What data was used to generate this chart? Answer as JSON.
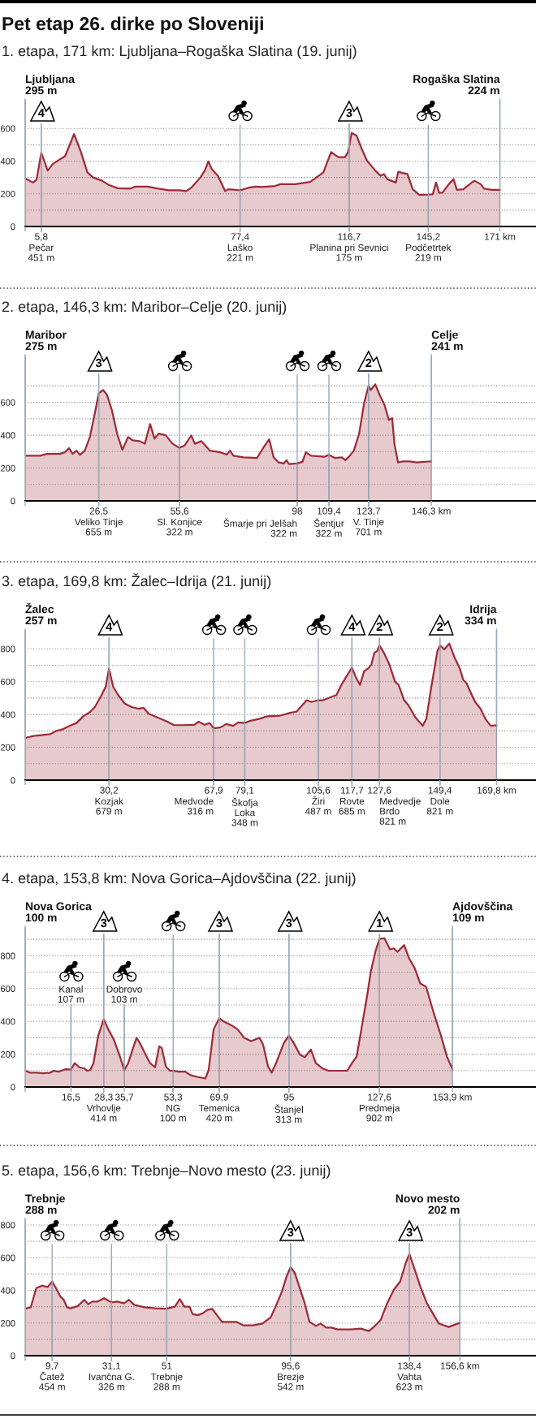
{
  "chart_data": [
    {
      "type": "area",
      "title": "Pet etap 26. dirke po Sloveniji",
      "subtitle": "1. etapa, 171 km: Ljubljana–Rogaška Slatina (19. junij)",
      "x": [
        0,
        2.8,
        4.1,
        5.8,
        6.8,
        8.1,
        10.0,
        11.9,
        14.4,
        17.6,
        20.1,
        22.4,
        24.5,
        27.7,
        30.2,
        33.4,
        37.8,
        39.7,
        44.1,
        47.9,
        51.7,
        55.5,
        58.0,
        59.9,
        63.1,
        64.7,
        66.0,
        67.2,
        69.4,
        70.7,
        72.0,
        73.2,
        75.8,
        77.4,
        80.6,
        83.0,
        85.4,
        90.1,
        91.9,
        97.3,
        102.6,
        104.4,
        107.4,
        110.2,
        112.8,
        115.2,
        116.3,
        116.7,
        117.6,
        119.4,
        121.2,
        123.1,
        126.1,
        128.0,
        129.2,
        130.4,
        133.5,
        134.4,
        136.0,
        137.7,
        139.6,
        142.0,
        145.2,
        146.8,
        148.0,
        149.1,
        150.3,
        152.6,
        154.3,
        155.5,
        157.8,
        160.1,
        161.8,
        164.1,
        165.3,
        168.1,
        171
      ],
      "series": [
        {
          "color": "#9e2a38",
          "values": [
            295,
            269,
            286,
            451,
            404,
            342,
            383,
            404,
            431,
            565,
            455,
            331,
            300,
            280,
            253,
            234,
            232,
            244,
            244,
            232,
            222,
            222,
            217,
            238,
            300,
            342,
            398,
            352,
            311,
            265,
            217,
            228,
            224,
            221,
            238,
            244,
            242,
            248,
            259,
            259,
            273,
            294,
            331,
            455,
            424,
            424,
            455,
            490,
            573,
            555,
            476,
            404,
            342,
            311,
            321,
            290,
            269,
            335,
            327,
            321,
            228,
            193,
            195,
            197,
            269,
            207,
            207,
            259,
            290,
            224,
            228,
            259,
            280,
            259,
            232,
            224,
            224
          ]
        }
      ],
      "xlim": [
        0,
        184
      ],
      "ylim": [
        0,
        770
      ],
      "xticks": [
        {
          "value": 0,
          "label": null
        },
        {
          "value": 5.8,
          "label": "5,8"
        },
        {
          "value": 77.4,
          "label": "77,4"
        },
        {
          "value": 116.7,
          "label": "116,7"
        },
        {
          "value": 145.2,
          "label": "145,2"
        },
        {
          "value": 171,
          "label": "171 km"
        }
      ],
      "yticks": [
        0,
        {
          "value": 100,
          "label": null
        },
        200,
        {
          "value": 300,
          "label": null
        },
        400,
        {
          "value": 500,
          "label": null
        },
        600
      ],
      "grid": true,
      "annotations": [
        {
          "text": "Ljubljana\n295 m",
          "x": 0,
          "y": 295
        },
        {
          "text": "Pečar\n451 m",
          "x": 5.8,
          "y": 451
        },
        {
          "text": "4",
          "x": 5.8,
          "y": 451
        },
        {
          "text": "Laško\n221 m",
          "x": 77.4,
          "y": 221
        },
        {
          "text": "Planina pri Sevnici\n175 m",
          "x": 116.7,
          "y": 490
        },
        {
          "text": "3",
          "x": 116.7,
          "y": 490
        },
        {
          "text": "Podčetrtek\n219 m",
          "x": 145.2,
          "y": 195
        },
        {
          "text": "Rogaška Slatina\n224 m",
          "x": 171,
          "y": 224
        }
      ]
    },
    {
      "type": "area",
      "subtitle": "2. etapa, 146,3 km: Maribor–Celje (20. junij)",
      "x": [
        0,
        5.4,
        7.8,
        12.5,
        14.3,
        15.8,
        17.1,
        18.5,
        19.7,
        21.5,
        23.3,
        25.1,
        26.5,
        28.1,
        29.4,
        31.2,
        33.1,
        35.0,
        37.1,
        38.7,
        41.2,
        43.1,
        45.0,
        46.6,
        48.1,
        50.6,
        53.1,
        55.6,
        57.4,
        59.8,
        61.1,
        63.5,
        66.5,
        70.2,
        72.6,
        73.8,
        75.0,
        78.6,
        83.5,
        85.9,
        87.9,
        89.5,
        91.3,
        93.2,
        94.1,
        95.0,
        98.0,
        99.9,
        101.1,
        103.0,
        107.9,
        109.4,
        111.6,
        114.1,
        115.3,
        116.6,
        118.4,
        120.3,
        122.1,
        123.7,
        124.5,
        126.1,
        127.6,
        129.4,
        131.0,
        132.2,
        133.0,
        134.3,
        136.1,
        138.5,
        140.9,
        146.3
      ],
      "series": [
        {
          "color": "#9e2a38",
          "values": [
            275,
            275,
            286,
            286,
            296,
            321,
            286,
            306,
            280,
            306,
            389,
            534,
            655,
            675,
            648,
            555,
            410,
            311,
            389,
            369,
            364,
            348,
            468,
            379,
            410,
            400,
            348,
            322,
            337,
            398,
            348,
            364,
            306,
            296,
            282,
            306,
            275,
            265,
            261,
            327,
            375,
            265,
            234,
            228,
            248,
            224,
            228,
            238,
            296,
            275,
            269,
            280,
            261,
            265,
            248,
            269,
            306,
            410,
            596,
            701,
            675,
            710,
            648,
            586,
            493,
            503,
            348,
            234,
            240,
            240,
            234,
            241
          ]
        }
      ],
      "xlim": [
        0,
        184
      ],
      "ylim": [
        0,
        880
      ],
      "xticks": [
        {
          "value": 0,
          "label": null
        },
        {
          "value": 26.5,
          "label": "26,5"
        },
        {
          "value": 55.6,
          "label": "55,6"
        },
        98,
        {
          "value": 109.4,
          "label": "109,4"
        },
        {
          "value": 123.7,
          "label": "123,7"
        },
        {
          "value": 146.3,
          "label": "146,3 km"
        }
      ],
      "yticks": [
        0,
        {
          "value": 100,
          "label": null
        },
        200,
        {
          "value": 300,
          "label": null
        },
        400,
        {
          "value": 500,
          "label": null
        },
        600,
        {
          "value": 700,
          "label": null
        }
      ],
      "grid": true,
      "annotations": [
        {
          "text": "Maribor\n275 m",
          "x": 0,
          "y": 275
        },
        {
          "text": "Veliko Tinje\n655 m",
          "x": 26.5,
          "y": 655
        },
        {
          "text": "3",
          "x": 26.5,
          "y": 655
        },
        {
          "text": "Sl. Konjice\n322 m",
          "x": 55.6,
          "y": 322
        },
        {
          "text": "Šmarje pri Jelšah\n322 m",
          "x": 98,
          "y": 228
        },
        {
          "text": "Šentjur\n322 m",
          "x": 109.4,
          "y": 280
        },
        {
          "text": "V. Tinje\n701 m",
          "x": 123.7,
          "y": 701
        },
        {
          "text": "2",
          "x": 123.7,
          "y": 701
        },
        {
          "text": "Celje\n241 m",
          "x": 146.3,
          "y": 241
        }
      ]
    },
    {
      "type": "area",
      "subtitle": "3. etapa, 169,8 km: Žalec–Idrija (21. junij)",
      "x": [
        0,
        3.0,
        9.0,
        11.3,
        13.7,
        16.1,
        18.5,
        20.9,
        23.3,
        25.1,
        27.5,
        29.0,
        30.2,
        31.7,
        33.5,
        35.9,
        38.4,
        40.8,
        42.6,
        44.5,
        47.5,
        51.2,
        53.6,
        56.7,
        60.9,
        62.5,
        64.6,
        66.4,
        67.9,
        70.3,
        72.5,
        74.9,
        76.8,
        79.1,
        81.2,
        84.2,
        87.2,
        91.9,
        95.4,
        97.8,
        101.4,
        103.1,
        105.6,
        107.3,
        110.3,
        112.1,
        113.9,
        115.7,
        117.7,
        119.0,
        120.6,
        122.1,
        123.7,
        124.7,
        125.8,
        126.8,
        127.6,
        129.2,
        131.2,
        133.2,
        134.5,
        136.5,
        138.1,
        140.5,
        143.2,
        144.5,
        146.2,
        148.5,
        149.4,
        151.0,
        152.8,
        154.7,
        156.5,
        157.8,
        159.0,
        160.9,
        162.1,
        164.0,
        165.8,
        167.7,
        169.8
      ],
      "series": [
        {
          "color": "#9e2a38",
          "values": [
            257,
            269,
            280,
            300,
            311,
            331,
            348,
            389,
            414,
            445,
            518,
            569,
            679,
            569,
            518,
            466,
            445,
            435,
            441,
            404,
            383,
            356,
            335,
            335,
            337,
            356,
            337,
            348,
            316,
            321,
            342,
            331,
            352,
            348,
            362,
            373,
            389,
            393,
            410,
            418,
            487,
            476,
            487,
            487,
            507,
            518,
            580,
            631,
            685,
            631,
            580,
            663,
            683,
            704,
            776,
            787,
            821,
            776,
            704,
            600,
            580,
            487,
            455,
            383,
            331,
            373,
            559,
            787,
            821,
            797,
            832,
            745,
            683,
            611,
            590,
            518,
            476,
            435,
            373,
            331,
            334
          ]
        }
      ],
      "xlim": [
        0,
        184
      ],
      "ylim": [
        0,
        910
      ],
      "xticks": [
        {
          "value": 0,
          "label": null
        },
        {
          "value": 30.2,
          "label": "30,2"
        },
        {
          "value": 67.9,
          "label": "67,9"
        },
        {
          "value": 79.1,
          "label": "79,1"
        },
        {
          "value": 105.6,
          "label": "105,6"
        },
        {
          "value": 117.7,
          "label": "117,7"
        },
        {
          "value": 127.6,
          "label": "127,6"
        },
        {
          "value": 149.4,
          "label": "149,4"
        },
        {
          "value": 169.8,
          "label": "169,8 km"
        }
      ],
      "yticks": [
        0,
        {
          "value": 100,
          "label": null
        },
        200,
        {
          "value": 300,
          "label": null
        },
        400,
        {
          "value": 500,
          "label": null
        },
        600,
        {
          "value": 700,
          "label": null
        },
        800
      ],
      "grid": true,
      "annotations": [
        {
          "text": "Žalec\n257 m",
          "x": 0,
          "y": 257
        },
        {
          "text": "Kozjak\n679 m",
          "x": 30.2,
          "y": 679
        },
        {
          "text": "4",
          "x": 30.2,
          "y": 679
        },
        {
          "text": "Medvode\n316 m",
          "x": 67.9,
          "y": 316
        },
        {
          "text": "Škofja\nLoka\n348 m",
          "x": 79.1,
          "y": 348
        },
        {
          "text": "Žiri\n487 m",
          "x": 105.6,
          "y": 487
        },
        {
          "text": "Rovte\n685 m",
          "x": 117.7,
          "y": 685
        },
        {
          "text": "4",
          "x": 117.7,
          "y": 685
        },
        {
          "text": "Medvedje\nBrdo\n821 m",
          "x": 127.6,
          "y": 821
        },
        {
          "text": "2",
          "x": 127.6,
          "y": 821
        },
        {
          "text": "Dole\n821 m",
          "x": 149.4,
          "y": 821
        },
        {
          "text": "2",
          "x": 149.4,
          "y": 821
        },
        {
          "text": "Idrija\n334 m",
          "x": 169.8,
          "y": 334
        }
      ]
    },
    {
      "type": "area",
      "subtitle": "4. etapa, 153,8 km: Nova Gorica–Ajdovščina (22. junij)",
      "x": [
        0,
        1.8,
        4.2,
        6.6,
        9.0,
        10.2,
        12.0,
        14.4,
        16.5,
        17.8,
        19.5,
        21.2,
        22.4,
        23.5,
        24.6,
        26.3,
        28.3,
        29.9,
        31.9,
        33.9,
        35.7,
        37.1,
        38.7,
        40.1,
        41.3,
        43.1,
        45.0,
        46.8,
        48.3,
        49.2,
        50.7,
        52.2,
        53.3,
        55.2,
        57.7,
        59.5,
        61.9,
        64.9,
        66.1,
        67.9,
        69.9,
        71.6,
        74.0,
        76.5,
        78.9,
        81.4,
        84.4,
        85.7,
        87.5,
        88.8,
        90.6,
        93.2,
        95,
        96.7,
        99.0,
        100.7,
        102.9,
        104.7,
        107.0,
        109.2,
        116.0,
        117.7,
        119.4,
        121.1,
        123.2,
        124.5,
        126.2,
        127.6,
        129.4,
        131.4,
        132.8,
        134.1,
        136.5,
        138.2,
        140.3,
        142.3,
        144.4,
        147.1,
        149.8,
        151.9,
        153.9
      ],
      "series": [
        {
          "color": "#9e2a38",
          "values": [
            100,
            87,
            87,
            83,
            87,
            99,
            93,
            108,
            107,
            145,
            120,
            114,
            99,
            104,
            145,
            311,
            414,
            352,
            290,
            197,
            103,
            145,
            228,
            300,
            269,
            207,
            145,
            120,
            248,
            238,
            124,
            99,
            100,
            93,
            93,
            72,
            62,
            52,
            104,
            352,
            420,
            398,
            379,
            352,
            300,
            280,
            300,
            259,
            124,
            87,
            155,
            269,
            313,
            269,
            197,
            182,
            228,
            145,
            114,
            99,
            99,
            145,
            186,
            352,
            559,
            704,
            828,
            902,
            907,
            839,
            845,
            824,
            865,
            787,
            725,
            631,
            611,
            455,
            311,
            186,
            109
          ]
        }
      ],
      "xlim": [
        0,
        184
      ],
      "ylim": [
        0,
        970
      ],
      "xticks": [
        {
          "value": 0,
          "label": null
        },
        {
          "value": 16.5,
          "label": "16,5"
        },
        {
          "value": 28.3,
          "label": "28,3"
        },
        {
          "value": 35.7,
          "label": "35,7"
        },
        {
          "value": 53.3,
          "label": "53,3"
        },
        {
          "value": 69.9,
          "label": "69,9"
        },
        95,
        {
          "value": 127.6,
          "label": "127,6"
        },
        {
          "value": 153.9,
          "label": "153,9 km"
        }
      ],
      "yticks": [
        0,
        {
          "value": 100,
          "label": null
        },
        200,
        {
          "value": 300,
          "label": null
        },
        400,
        {
          "value": 500,
          "label": null
        },
        600,
        {
          "value": 700,
          "label": null
        },
        800,
        {
          "value": 900,
          "label": null
        }
      ],
      "grid": true,
      "annotations": [
        {
          "text": "Nova Gorica\n100 m",
          "x": 0,
          "y": 100
        },
        {
          "text": "Kanal\n107 m",
          "x": 16.5,
          "y": 107
        },
        {
          "text": "Vrhovlje\n414 m",
          "x": 28.3,
          "y": 414
        },
        {
          "text": "3",
          "x": 28.3,
          "y": 414
        },
        {
          "text": "Dobrovo\n103 m",
          "x": 35.7,
          "y": 103
        },
        {
          "text": "NG\n100 m",
          "x": 53.3,
          "y": 100
        },
        {
          "text": "Temenica\n420 m",
          "x": 69.9,
          "y": 420
        },
        {
          "text": "3",
          "x": 69.9,
          "y": 420
        },
        {
          "text": "Štanjel\n313 m",
          "x": 95,
          "y": 313
        },
        {
          "text": "3",
          "x": 95,
          "y": 313
        },
        {
          "text": "Predmeja\n902 m",
          "x": 127.6,
          "y": 902
        },
        {
          "text": "1",
          "x": 127.6,
          "y": 902
        },
        {
          "text": "Ajdovščina\n109 m",
          "x": 153.9,
          "y": 109
        }
      ]
    },
    {
      "type": "area",
      "subtitle": "5. etapa, 156,6 km: Trebnje–Novo mesto (23. junij)",
      "x": [
        0,
        2.0,
        4.0,
        6.1,
        8.1,
        9.7,
        11.1,
        12.7,
        13.9,
        15.1,
        16.3,
        18.9,
        21.3,
        22.7,
        24.2,
        26.0,
        28.4,
        31.1,
        33.1,
        35.6,
        37.4,
        39.3,
        43.0,
        46.7,
        51,
        53.9,
        55.7,
        57.4,
        59.2,
        60.3,
        62.1,
        63.9,
        65.6,
        67.4,
        69.1,
        70.9,
        76.1,
        78.5,
        82.0,
        85.5,
        88.4,
        90.2,
        92.5,
        94.2,
        95.6,
        97.1,
        98.9,
        100.7,
        102.4,
        104.8,
        106.4,
        108.4,
        110.2,
        112.6,
        117.3,
        120.9,
        123.8,
        125.6,
        128.0,
        130.4,
        132.8,
        135.1,
        137.1,
        138.4,
        140.1,
        142.3,
        144.7,
        147.2,
        149.0,
        150.8,
        152.6,
        156.6
      ],
      "series": [
        {
          "color": "#9e2a38",
          "values": [
            288,
            296,
            414,
            429,
            420,
            454,
            414,
            362,
            342,
            296,
            290,
            304,
            342,
            315,
            331,
            331,
            352,
            326,
            331,
            321,
            342,
            311,
            296,
            290,
            288,
            300,
            346,
            300,
            300,
            255,
            248,
            259,
            280,
            286,
            248,
            207,
            207,
            186,
            186,
            197,
            234,
            300,
            393,
            487,
            542,
            507,
            414,
            321,
            207,
            182,
            197,
            172,
            172,
            161,
            161,
            166,
            151,
            176,
            217,
            321,
            404,
            455,
            569,
            623,
            538,
            424,
            321,
            248,
            197,
            186,
            176,
            202
          ]
        }
      ],
      "xlim": [
        0,
        184
      ],
      "ylim": [
        0,
        830
      ],
      "xticks": [
        {
          "value": 0,
          "label": null
        },
        {
          "value": 9.7,
          "label": "9,7"
        },
        {
          "value": 31.1,
          "label": "31,1"
        },
        51,
        {
          "value": 95.6,
          "label": "95,6"
        },
        {
          "value": 138.4,
          "label": "138,4"
        },
        {
          "value": 156.6,
          "label": "156,6 km"
        }
      ],
      "yticks": [
        0,
        {
          "value": 100,
          "label": null
        },
        200,
        {
          "value": 300,
          "label": null
        },
        400,
        {
          "value": 500,
          "label": null
        },
        600,
        {
          "value": 700,
          "label": null
        },
        800
      ],
      "grid": true,
      "annotations": [
        {
          "text": "Trebnje\n288 m",
          "x": 0,
          "y": 288
        },
        {
          "text": "Čatež\n454 m",
          "x": 9.7,
          "y": 454
        },
        {
          "text": "Ivančna G.\n326 m",
          "x": 31.1,
          "y": 326
        },
        {
          "text": "Trebnje\n288 m",
          "x": 51,
          "y": 288
        },
        {
          "text": "Brezje\n542 m",
          "x": 95.6,
          "y": 542
        },
        {
          "text": "3",
          "x": 95.6,
          "y": 542
        },
        {
          "text": "Vahta\n623 m",
          "x": 138.4,
          "y": 623
        },
        {
          "text": "3",
          "x": 138.4,
          "y": 623
        },
        {
          "text": "Novo mesto\n202 m",
          "x": 156.6,
          "y": 202
        }
      ]
    }
  ]
}
